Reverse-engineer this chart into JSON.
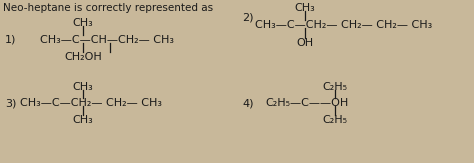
{
  "title": "Neo-heptane is correctly represented as",
  "background_color": "#c8b89a",
  "text_color": "#1a1a1a",
  "struct1_label": "1)",
  "struct1_top": "CH₃",
  "struct1_main": "CH₃—C—CH—CH₂— CH₃",
  "struct1_bottom": "CH₂OH",
  "struct2_label": "2)",
  "struct2_top": "CH₃",
  "struct2_main": "CH₃—C—CH₂— CH₂— CH₂— CH₃",
  "struct2_bottom": "OH",
  "struct3_label": "3)",
  "struct3_top": "CH₃",
  "struct3_main": "CH₃—C—CH₂— CH₂— CH₃",
  "struct3_bottom": "CH₃",
  "struct4_label": "4)",
  "struct4_top": "C₂H₅",
  "struct4_main": "C₂H₅—C——OH",
  "struct4_bottom": "C₂H₅",
  "figsize": [
    4.74,
    1.63
  ],
  "dpi": 100
}
